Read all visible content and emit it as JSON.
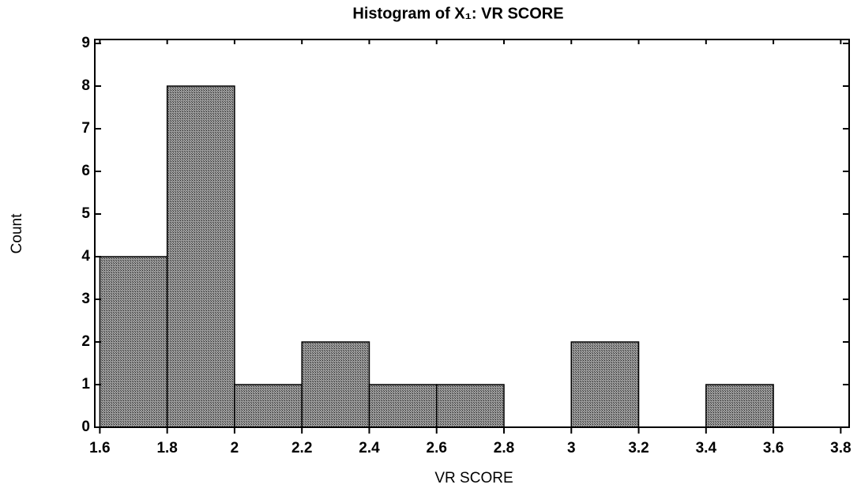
{
  "chart_data": {
    "type": "histogram",
    "title": "Histogram of X₁: VR SCORE",
    "x_label": "VR SCORE",
    "y_label": "Count",
    "bins": [
      1.6,
      1.8,
      2,
      2.2,
      2.4,
      2.6,
      2.8,
      3,
      3.2,
      3.4,
      3.6,
      3.8
    ],
    "values": [
      4,
      8,
      1,
      2,
      1,
      1,
      0,
      2,
      0,
      1,
      0
    ],
    "color": "#8a8a8a",
    "xlim": [
      1.585,
      3.825
    ],
    "xticks": [
      1.6,
      1.8,
      2,
      2.2,
      2.4,
      2.6,
      2.8,
      3,
      3.2,
      3.4,
      3.6,
      3.8
    ],
    "ylim": [
      0,
      9
    ],
    "yticks": [
      0,
      1,
      2,
      3,
      4,
      5,
      6,
      7,
      8,
      9
    ]
  }
}
